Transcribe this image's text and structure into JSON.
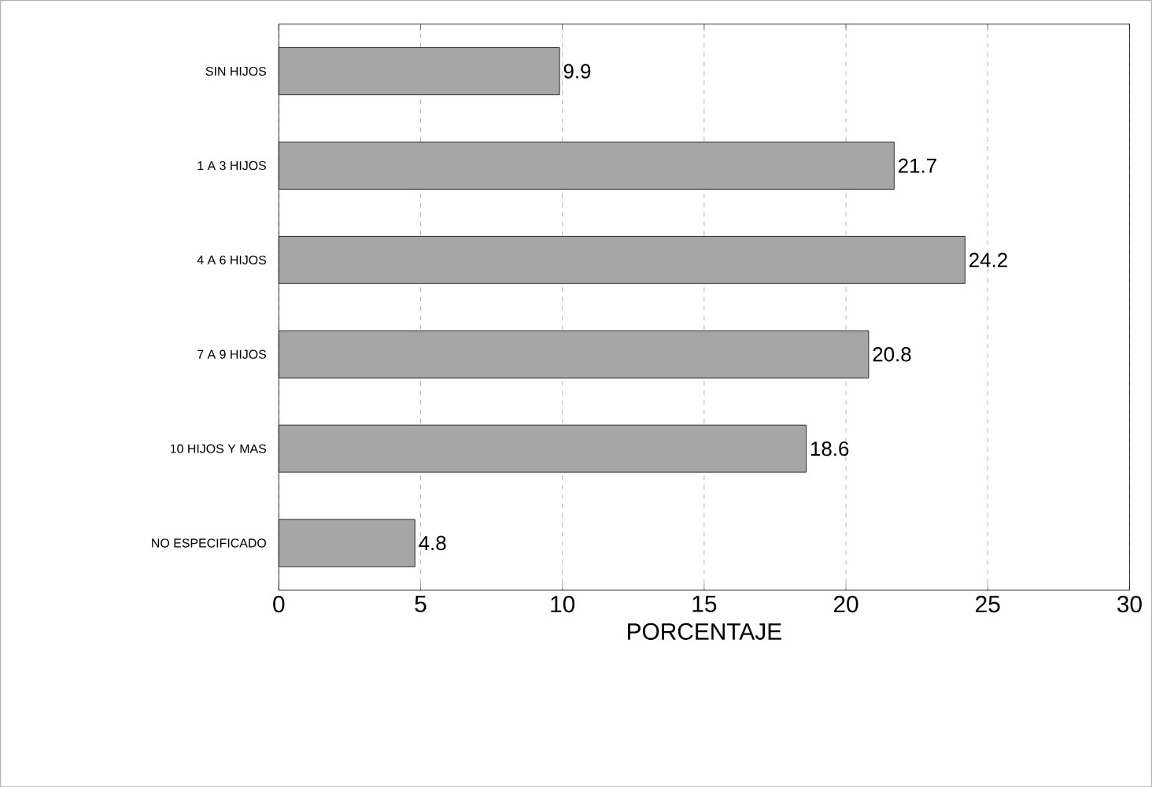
{
  "chart_data": {
    "type": "bar",
    "orientation": "horizontal",
    "xlabel": "PORCENTAJE",
    "categories": [
      "SIN HIJOS",
      "1 A 3 HIJOS",
      "4 A 6 HIJOS",
      "7 A 9 HIJOS",
      "10 HIJOS Y MAS",
      "NO ESPECIFICADO"
    ],
    "values": [
      9.9,
      21.7,
      24.2,
      20.8,
      18.6,
      4.8
    ],
    "color": "#a6a6a6",
    "xlim": [
      0,
      30
    ],
    "xticks": [
      0,
      5,
      10,
      15,
      20,
      25,
      30
    ],
    "grid": "x",
    "data_labels": true
  }
}
